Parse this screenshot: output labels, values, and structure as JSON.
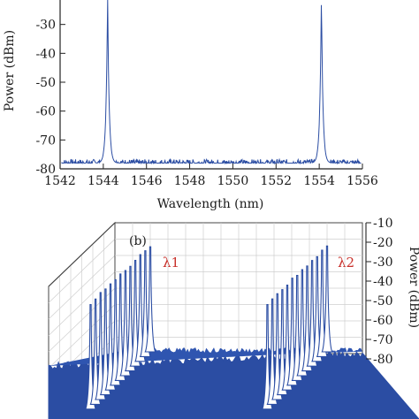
{
  "chart_data": [
    {
      "type": "line",
      "panel": "a",
      "xlabel": "Wavelength (nm)",
      "ylabel": "Power (dBm)",
      "xlim": [
        1542,
        1556
      ],
      "ylim": [
        -80,
        -20
      ],
      "x_ticks": [
        "1542",
        "1544",
        "1546",
        "1548",
        "1550",
        "1552",
        "1554",
        "1556"
      ],
      "y_ticks": [
        "-30",
        "-40",
        "-50",
        "-60",
        "-70",
        "-80"
      ],
      "noise_floor": -78,
      "peaks": [
        {
          "x": 1544.2,
          "y": -20
        },
        {
          "x": 1554.1,
          "y": -20
        }
      ],
      "color": "#2b4da3"
    },
    {
      "type": "line",
      "panel": "b",
      "panel_label": "(b)",
      "ylabel": "Power (dBm)",
      "z_ticks": [
        "-10",
        "-20",
        "-30",
        "-40",
        "-50",
        "-60",
        "-70",
        "-80"
      ],
      "zlim": [
        -80,
        -10
      ],
      "series_labels": [
        "λ1",
        "λ2"
      ],
      "scan_count": 13,
      "peak_level": -22,
      "noise_floor": -76,
      "color": "#2b4da3",
      "label_color": "#c8302a"
    }
  ]
}
